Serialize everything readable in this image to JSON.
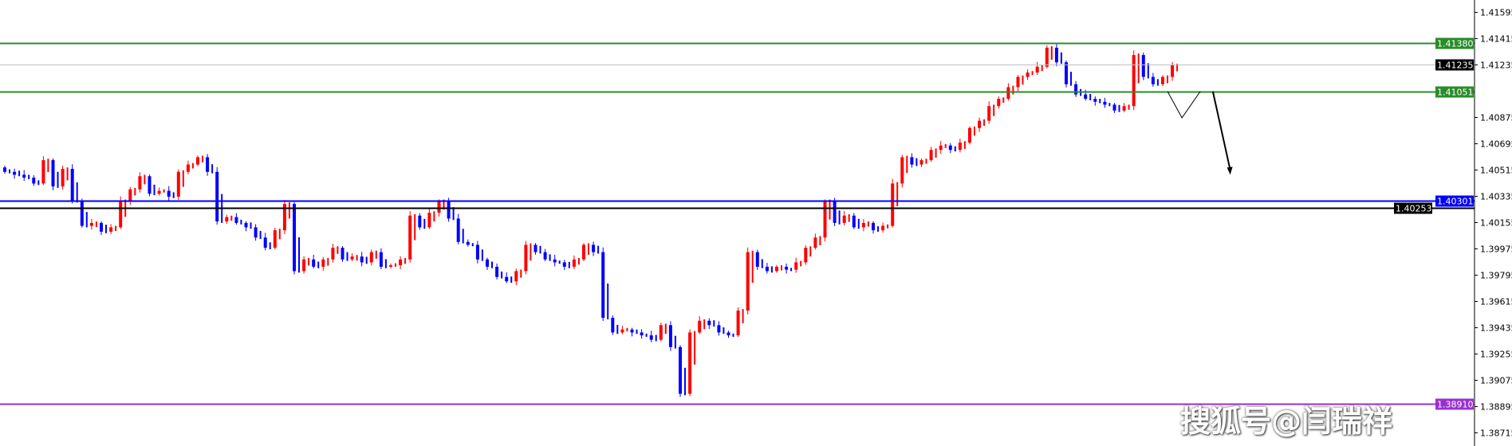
{
  "chart_data": {
    "type": "candlestick",
    "title": "",
    "xlabel": "",
    "ylabel": "",
    "ylim": [
      1.3868,
      1.4168
    ],
    "grid": false,
    "y_ticks": [
      "1.41595",
      "1.41415",
      "1.41235",
      "1.40875",
      "1.40695",
      "1.40515",
      "1.40335",
      "1.40155",
      "1.39975",
      "1.39795",
      "1.39615",
      "1.39435",
      "1.39255",
      "1.39075",
      "1.38895",
      "1.38715"
    ],
    "closes": [
      1.405,
      1.4048,
      1.4046,
      1.4042,
      1.4058,
      1.404,
      1.4052,
      1.403,
      1.4013,
      1.4015,
      1.4009,
      1.4012,
      1.403,
      1.4038,
      1.4047,
      1.4035,
      1.4037,
      1.4033,
      1.405,
      1.4055,
      1.406,
      1.405,
      1.4016,
      1.4019,
      1.4015,
      1.4012,
      1.4005,
      1.3998,
      1.401,
      1.4028,
      1.3982,
      1.399,
      1.3985,
      1.399,
      1.3998,
      1.399,
      1.3992,
      1.3988,
      1.3995,
      1.3985,
      1.3986,
      1.399,
      1.402,
      1.4012,
      1.4022,
      1.403,
      1.4018,
      1.4002,
      1.4,
      1.399,
      1.3985,
      1.3978,
      1.3975,
      1.3982,
      1.4,
      1.3995,
      1.399,
      1.3988,
      1.3985,
      1.399,
      1.4,
      1.3995,
      1.395,
      1.394,
      1.3942,
      1.394,
      1.3938,
      1.3935,
      1.3945,
      1.393,
      1.3898,
      1.394,
      1.3948,
      1.3945,
      1.394,
      1.3938,
      1.3955,
      1.3995,
      1.3985,
      1.3982,
      1.3985,
      1.3983,
      1.3988,
      1.3998,
      1.4005,
      1.403,
      1.4015,
      1.402,
      1.4012,
      1.4015,
      1.401,
      1.4013,
      1.4042,
      1.406,
      1.4055,
      1.4058,
      1.4065,
      1.4068,
      1.4065,
      1.407,
      1.408,
      1.4085,
      1.4095,
      1.41,
      1.4108,
      1.4115,
      1.4118,
      1.4122,
      1.4135,
      1.4125,
      1.411,
      1.4103,
      1.41,
      1.4098,
      1.4096,
      1.4092,
      1.4095,
      1.413,
      1.4115,
      1.411,
      1.4115,
      1.4123
    ],
    "bull_color": "#ff0000",
    "bear_color": "#0000ff",
    "levels": [
      {
        "price": 1.4138,
        "label": "1.41380",
        "color": "#2a8c2a"
      },
      {
        "price": 1.41235,
        "label": "1.41235",
        "color": "#c0c0c0",
        "label_bg": "#000000"
      },
      {
        "price": 1.41051,
        "label": "1.41051",
        "color": "#2a8c2a"
      },
      {
        "price": 1.40301,
        "label": "1.40301",
        "color": "#0000ff"
      },
      {
        "price": 1.40253,
        "label": "1.40253",
        "color": "#000000"
      },
      {
        "price": 1.3891,
        "label": "1.38910",
        "color": "#9b30d0"
      }
    ],
    "projection": {
      "zigzag": [
        [
          1.41051,
          0
        ],
        [
          1.4087,
          1.5
        ],
        [
          1.41051,
          3.4
        ]
      ],
      "arrow": [
        [
          1.41051,
          4.7
        ],
        [
          1.4048,
          6.5
        ]
      ]
    }
  },
  "watermark": "搜狐号@闫瑞祥"
}
